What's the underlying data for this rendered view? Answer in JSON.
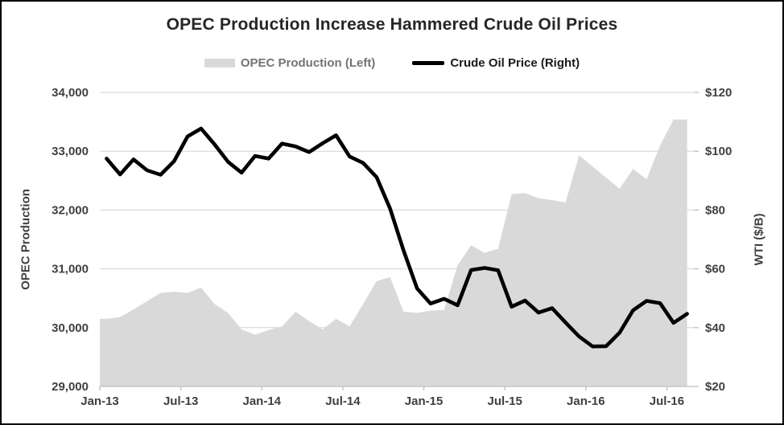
{
  "window": {
    "background": "#ffffff",
    "border_color": "#000000"
  },
  "title": "OPEC Production Increase Hammered Crude Oil Prices",
  "legend": [
    {
      "label": "OPEC Production (Left)",
      "swatch": "area-swatch",
      "color": "#d9d9d9"
    },
    {
      "label": "Crude Oil Price (Right)",
      "swatch": "line-swatch",
      "color": "#000000"
    }
  ],
  "chart_data": {
    "type": "area-line-combo",
    "x": [
      "Jan-13",
      "Feb-13",
      "Mar-13",
      "Apr-13",
      "May-13",
      "Jun-13",
      "Jul-13",
      "Aug-13",
      "Sep-13",
      "Oct-13",
      "Nov-13",
      "Dec-13",
      "Jan-14",
      "Feb-14",
      "Mar-14",
      "Apr-14",
      "May-14",
      "Jun-14",
      "Jul-14",
      "Aug-14",
      "Sep-14",
      "Oct-14",
      "Nov-14",
      "Dec-14",
      "Jan-15",
      "Feb-15",
      "Mar-15",
      "Apr-15",
      "May-15",
      "Jun-15",
      "Jul-15",
      "Aug-15",
      "Sep-15",
      "Oct-15",
      "Nov-15",
      "Dec-15",
      "Jan-16",
      "Feb-16",
      "Mar-16",
      "Apr-16",
      "May-16",
      "Jun-16",
      "Jul-16",
      "Aug-16"
    ],
    "series": [
      {
        "name": "OPEC Production (Left)",
        "type": "area",
        "axis": "left",
        "color": "#d9d9d9",
        "values": [
          30150,
          30180,
          30310,
          30450,
          30590,
          30610,
          30590,
          30680,
          30400,
          30250,
          29970,
          29880,
          29960,
          30020,
          30270,
          30110,
          29970,
          30150,
          30020,
          30400,
          30790,
          30860,
          30270,
          30250,
          30290,
          30300,
          31060,
          31400,
          31270,
          31340,
          32270,
          32290,
          32200,
          32170,
          32130,
          32930,
          32740,
          32550,
          32360,
          32700,
          32520,
          33100,
          33540,
          33540
        ]
      },
      {
        "name": "Crude Oil Price (Right)",
        "type": "line",
        "axis": "right",
        "color": "#000000",
        "values": [
          97.5,
          92.1,
          97.2,
          93.5,
          92.0,
          96.6,
          105.0,
          107.7,
          102.3,
          96.4,
          92.7,
          98.4,
          97.5,
          102.6,
          101.6,
          99.7,
          102.7,
          105.4,
          98.2,
          96.0,
          91.2,
          80.5,
          66.2,
          53.3,
          48.2,
          49.8,
          47.6,
          59.6,
          60.3,
          59.5,
          47.1,
          49.2,
          45.1,
          46.6,
          41.7,
          37.0,
          33.6,
          33.7,
          38.3,
          45.9,
          49.1,
          48.3,
          41.6,
          44.7
        ]
      }
    ],
    "left_axis": {
      "title": "OPEC Production",
      "min": 29000,
      "max": 34000,
      "tick_values": [
        29000,
        30000,
        31000,
        32000,
        33000,
        34000
      ],
      "tick_labels": [
        "29,000",
        "30,000",
        "31,000",
        "32,000",
        "33,000",
        "34,000"
      ]
    },
    "right_axis": {
      "title": "WTI ($/B)",
      "min": 20,
      "max": 120,
      "tick_values": [
        20,
        40,
        60,
        80,
        100,
        120
      ],
      "tick_labels": [
        "$20",
        "$40",
        "$60",
        "$80",
        "$100",
        "$120"
      ]
    },
    "x_tick_indices": [
      0,
      6,
      12,
      18,
      24,
      30,
      36,
      42
    ],
    "x_tick_labels": [
      "Jan-13",
      "Jul-13",
      "Jan-14",
      "Jul-14",
      "Jan-15",
      "Jul-15",
      "Jan-16",
      "Jul-16"
    ],
    "grid": true,
    "grid_color": "#d2d2d2",
    "axis_line_color": "#bfbfbf"
  }
}
